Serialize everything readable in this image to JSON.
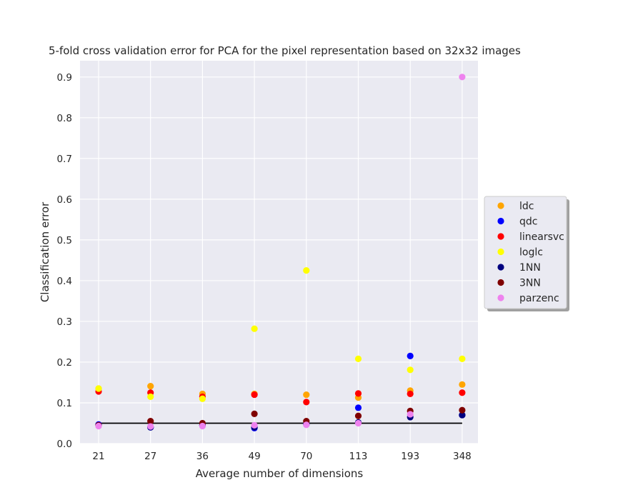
{
  "chart_data": {
    "type": "scatter",
    "title": "5-fold cross validation error for PCA for the pixel representation based on 32x32 images",
    "xlabel": "Average number of dimensions",
    "ylabel": "Classification error",
    "categories": [
      "21",
      "27",
      "36",
      "49",
      "70",
      "113",
      "193",
      "348"
    ],
    "y_ticks": [
      "0.0",
      "0.1",
      "0.2",
      "0.3",
      "0.4",
      "0.5",
      "0.6",
      "0.7",
      "0.8",
      "0.9"
    ],
    "ylim": [
      0,
      0.94
    ],
    "grid": true,
    "legend_position": "center-right outside",
    "series": [
      {
        "name": "ldc",
        "color": "#ffa500",
        "values": [
          0.135,
          0.141,
          0.122,
          0.122,
          0.12,
          0.113,
          0.13,
          0.145
        ]
      },
      {
        "name": "qdc",
        "color": "#0000ff",
        "values": [
          0.047,
          0.04,
          0.045,
          0.038,
          0.047,
          0.088,
          0.215,
          0.07
        ]
      },
      {
        "name": "linearsvc",
        "color": "#ff0000",
        "values": [
          0.128,
          0.125,
          0.115,
          0.12,
          0.102,
          0.123,
          0.122,
          0.125
        ]
      },
      {
        "name": "loglc",
        "color": "#ffff00",
        "values": [
          0.135,
          0.115,
          0.11,
          0.282,
          0.425,
          0.208,
          0.181,
          0.208
        ]
      },
      {
        "name": "1NN",
        "color": "#00007f",
        "values": [
          0.045,
          0.04,
          0.045,
          0.04,
          0.048,
          0.052,
          0.065,
          0.07
        ]
      },
      {
        "name": "3NN",
        "color": "#7f0000",
        "values": [
          0.045,
          0.055,
          0.05,
          0.073,
          0.055,
          0.068,
          0.08,
          0.082
        ]
      },
      {
        "name": "parzenc",
        "color": "#ee82ee",
        "values": [
          0.043,
          0.042,
          0.043,
          0.045,
          0.046,
          0.05,
          0.072,
          0.9
        ]
      }
    ],
    "baseline": {
      "color": "#000000",
      "value": 0.05
    }
  }
}
